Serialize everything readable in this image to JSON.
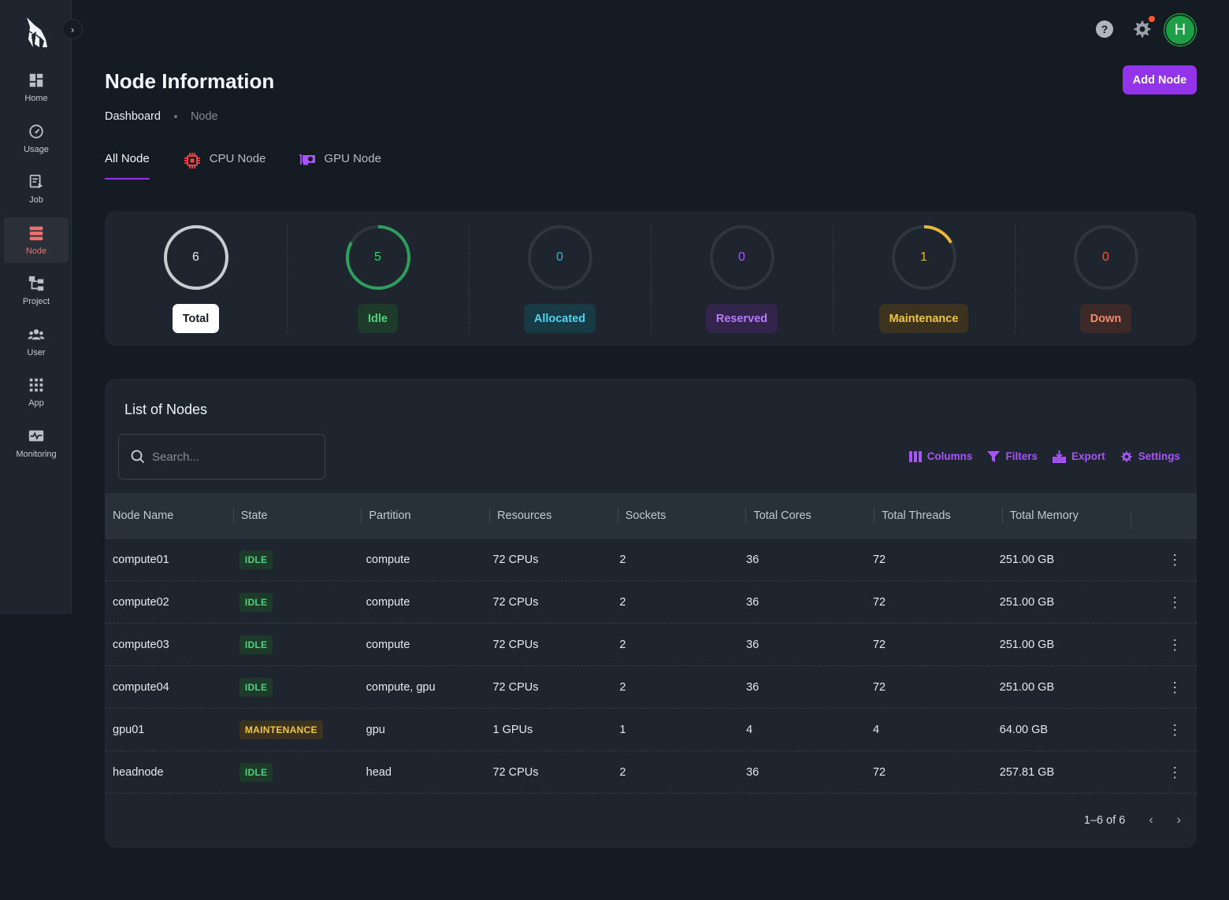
{
  "sidebar": {
    "collapse_icon": "chevron-right-icon",
    "items": [
      {
        "label": "Home",
        "icon": "dashboard-icon"
      },
      {
        "label": "Usage",
        "icon": "gauge-icon"
      },
      {
        "label": "Job",
        "icon": "job-icon"
      },
      {
        "label": "Node",
        "icon": "server-icon",
        "active": true
      },
      {
        "label": "Project",
        "icon": "project-tree-icon"
      },
      {
        "label": "User",
        "icon": "users-icon"
      },
      {
        "label": "App",
        "icon": "apps-grid-icon"
      },
      {
        "label": "Monitoring",
        "icon": "monitoring-icon"
      }
    ]
  },
  "header": {
    "avatar_initial": "H",
    "title": "Node Information",
    "add_button": "Add Node"
  },
  "breadcrumb": {
    "home": "Dashboard",
    "current": "Node"
  },
  "tabs": [
    {
      "label": "All Node",
      "active": true
    },
    {
      "label": "CPU Node",
      "icon": "cpu-icon"
    },
    {
      "label": "GPU Node",
      "icon": "gpu-icon"
    }
  ],
  "summary": [
    {
      "label": "Total",
      "value": "6",
      "color": "#c9ccd1",
      "fraction": 1.0
    },
    {
      "label": "Idle",
      "value": "5",
      "color": "#2f9e5b",
      "fraction": 0.83
    },
    {
      "label": "Allocated",
      "value": "0",
      "color": "#29b6d6",
      "fraction": 0
    },
    {
      "label": "Reserved",
      "value": "0",
      "color": "#a855f7",
      "fraction": 0
    },
    {
      "label": "Maintenance",
      "value": "1",
      "color": "#e9b73a",
      "fraction": 0.17
    },
    {
      "label": "Down",
      "value": "0",
      "color": "#ef5b3a",
      "fraction": 0
    }
  ],
  "table": {
    "title": "List of Nodes",
    "search_placeholder": "Search...",
    "toolbar": {
      "columns": "Columns",
      "filters": "Filters",
      "export": "Export",
      "settings": "Settings"
    },
    "headers": [
      "Node Name",
      "State",
      "Partition",
      "Resources",
      "Sockets",
      "Total Cores",
      "Total Threads",
      "Total Memory"
    ],
    "rows": [
      {
        "name": "compute01",
        "state": "IDLE",
        "partition": "compute",
        "resources": "72 CPUs",
        "sockets": "2",
        "cores": "36",
        "threads": "72",
        "memory": "251.00 GB"
      },
      {
        "name": "compute02",
        "state": "IDLE",
        "partition": "compute",
        "resources": "72 CPUs",
        "sockets": "2",
        "cores": "36",
        "threads": "72",
        "memory": "251.00 GB"
      },
      {
        "name": "compute03",
        "state": "IDLE",
        "partition": "compute",
        "resources": "72 CPUs",
        "sockets": "2",
        "cores": "36",
        "threads": "72",
        "memory": "251.00 GB"
      },
      {
        "name": "compute04",
        "state": "IDLE",
        "partition": "compute, gpu",
        "resources": "72 CPUs",
        "sockets": "2",
        "cores": "36",
        "threads": "72",
        "memory": "251.00 GB"
      },
      {
        "name": "gpu01",
        "state": "MAINTENANCE",
        "partition": "gpu",
        "resources": "1 GPUs",
        "sockets": "1",
        "cores": "4",
        "threads": "4",
        "memory": "64.00 GB"
      },
      {
        "name": "headnode",
        "state": "IDLE",
        "partition": "head",
        "resources": "72 CPUs",
        "sockets": "2",
        "cores": "36",
        "threads": "72",
        "memory": "257.81 GB"
      }
    ],
    "pagination": "1–6 of 6"
  }
}
